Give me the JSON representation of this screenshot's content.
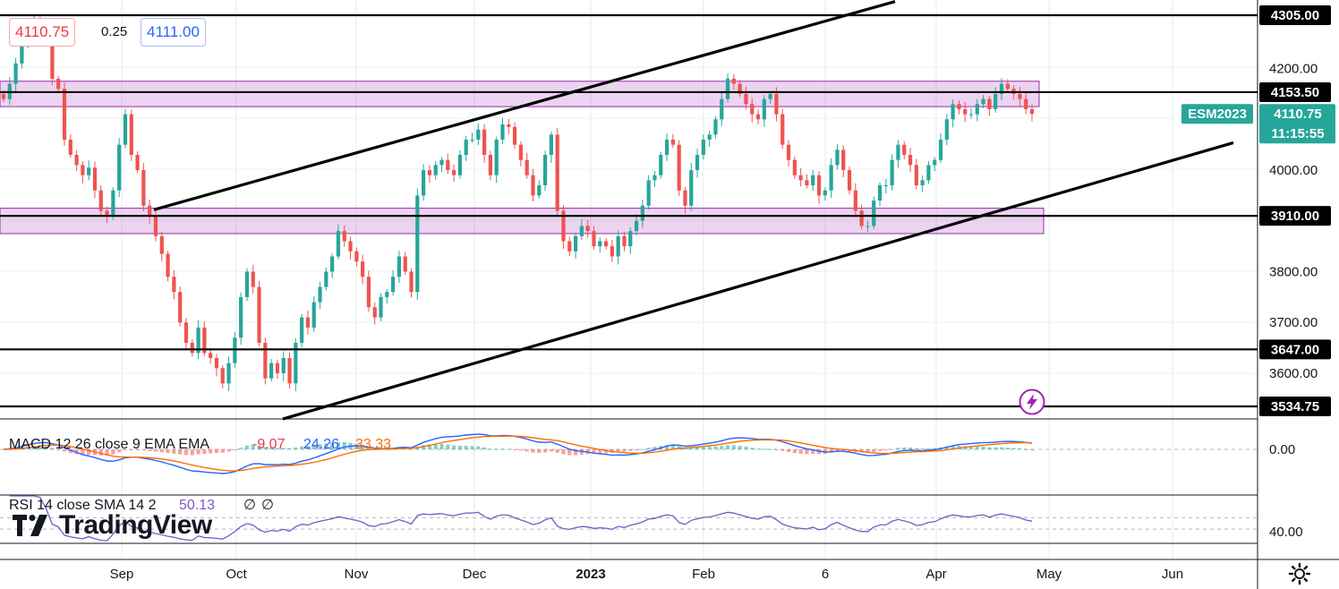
{
  "header": {
    "bid": "4110.75",
    "spread": "0.25",
    "ask": "4111.00",
    "bid_color": "#f23645",
    "ask_color": "#2962ff"
  },
  "chart_data": {
    "type": "candlestick",
    "ylim": [
      3525,
      4330
    ],
    "y_ticks": [
      "4200.00",
      "4000.00",
      "3800.00",
      "3700.00",
      "3600.00"
    ],
    "y_tick_values": [
      4200,
      4000,
      3800,
      3700,
      3600
    ],
    "x_ticks": [
      "Sep",
      "Oct",
      "Nov",
      "Dec",
      "2023",
      "Feb",
      "6",
      "Apr",
      "May",
      "Jun"
    ],
    "last_price": {
      "symbol": "ESM2023",
      "price": "4110.75",
      "countdown": "11:15:55",
      "value": 4110.75
    },
    "levels": [
      {
        "label": "4305.00",
        "value": 4305
      },
      {
        "label": "4153.50",
        "value": 4153.5
      },
      {
        "label": "3910.00",
        "value": 3910
      },
      {
        "label": "3647.00",
        "value": 3647
      },
      {
        "label": "3534.75",
        "value": 3534.75
      }
    ],
    "zones": [
      {
        "low": 4125,
        "high": 4175
      },
      {
        "low": 3875,
        "high": 3925
      }
    ],
    "channel": [
      {
        "from": [
          "Sep 12",
          3922
        ],
        "to": [
          "Feb 24",
          4332
        ]
      },
      {
        "from": [
          "Oct 13",
          3510
        ],
        "to": [
          "May 20",
          4054
        ]
      }
    ],
    "closes": [
      4140,
      4170,
      4210,
      4255,
      4285,
      4290,
      4285,
      4255,
      4180,
      4160,
      4060,
      4030,
      4010,
      3990,
      4005,
      3960,
      3920,
      3910,
      3960,
      4050,
      4110,
      4030,
      4000,
      3930,
      3910,
      3870,
      3835,
      3790,
      3760,
      3700,
      3660,
      3640,
      3690,
      3640,
      3630,
      3610,
      3580,
      3620,
      3670,
      3750,
      3800,
      3770,
      3660,
      3590,
      3620,
      3600,
      3630,
      3580,
      3660,
      3710,
      3690,
      3740,
      3770,
      3800,
      3830,
      3880,
      3860,
      3840,
      3820,
      3790,
      3730,
      3710,
      3750,
      3760,
      3790,
      3830,
      3800,
      3760,
      3950,
      4000,
      3990,
      4010,
      4020,
      4000,
      3990,
      4030,
      4060,
      4060,
      4080,
      4030,
      3990,
      4060,
      4090,
      4085,
      4050,
      4020,
      3990,
      3950,
      3970,
      4030,
      4070,
      3920,
      3860,
      3840,
      3870,
      3890,
      3880,
      3850,
      3860,
      3850,
      3830,
      3870,
      3850,
      3880,
      3900,
      3930,
      3980,
      3990,
      4030,
      4060,
      4050,
      3960,
      3930,
      4000,
      4030,
      4060,
      4070,
      4100,
      4140,
      4180,
      4170,
      4150,
      4130,
      4110,
      4100,
      4140,
      4150,
      4110,
      4050,
      4020,
      3990,
      3980,
      3970,
      3990,
      3950,
      3960,
      4010,
      4040,
      4000,
      3960,
      3920,
      3890,
      3890,
      3940,
      3970,
      3970,
      4020,
      4050,
      4030,
      4010,
      3970,
      3980,
      4010,
      4020,
      4060,
      4100,
      4130,
      4120,
      4110,
      4110,
      4130,
      4140,
      4120,
      4150,
      4170,
      4160,
      4150,
      4140,
      4120,
      4110.75
    ],
    "macd": {
      "label": "MACD 12 26 close 9 EMA EMA",
      "histogram": "-9.07",
      "macd": "24.26",
      "signal": "33.33",
      "zero_tick": "0.00",
      "colors": {
        "histogram": "#f23645",
        "macd": "#2962ff",
        "signal": "#ff6d00"
      }
    },
    "rsi": {
      "label": "RSI 14 close SMA 14 2",
      "value": "50.13",
      "na1": "∅",
      "na2": "∅",
      "tick": "40.00",
      "color": "#7e57c2"
    }
  }
}
